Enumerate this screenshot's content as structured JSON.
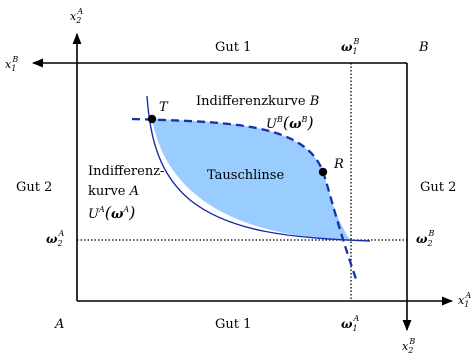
{
  "axes": {
    "a_horizontal": {
      "symbol": "x",
      "sub": "1",
      "sup": "A"
    },
    "a_vertical": {
      "symbol": "x",
      "sub": "2",
      "sup": "A"
    },
    "b_horizontal": {
      "symbol": "x",
      "sub": "1",
      "sup": "B"
    },
    "b_vertical": {
      "symbol": "x",
      "sub": "2",
      "sup": "B"
    }
  },
  "corners": {
    "origin_a": "A",
    "origin_b": "B"
  },
  "goods": {
    "gut1_top": "Gut 1",
    "gut1_bottom": "Gut 1",
    "gut2_left": "Gut 2",
    "gut2_right": "Gut 2"
  },
  "endowment": {
    "omega": "ω",
    "a1": {
      "sub": "1",
      "sup": "A"
    },
    "a2": {
      "sub": "2",
      "sup": "A"
    },
    "b1": {
      "sub": "1",
      "sup": "B"
    },
    "b2": {
      "sub": "2",
      "sup": "B"
    }
  },
  "curve_b": {
    "title_text": "Indifferenzkurve ",
    "title_letter": "B",
    "utility": "U",
    "agent": "B",
    "omega": "ω",
    "style": "dashed",
    "color": "#1a2fa8"
  },
  "curve_a": {
    "line1": "Indifferenz-",
    "line2_text": "kurve ",
    "line2_letter": "A",
    "utility": "U",
    "agent": "A",
    "omega": "ω",
    "style": "solid",
    "color": "#1a2fa8"
  },
  "lens": {
    "label": "Tauschlinse",
    "fill": "#99ccff"
  },
  "points": {
    "T": "T",
    "R": "R"
  }
}
